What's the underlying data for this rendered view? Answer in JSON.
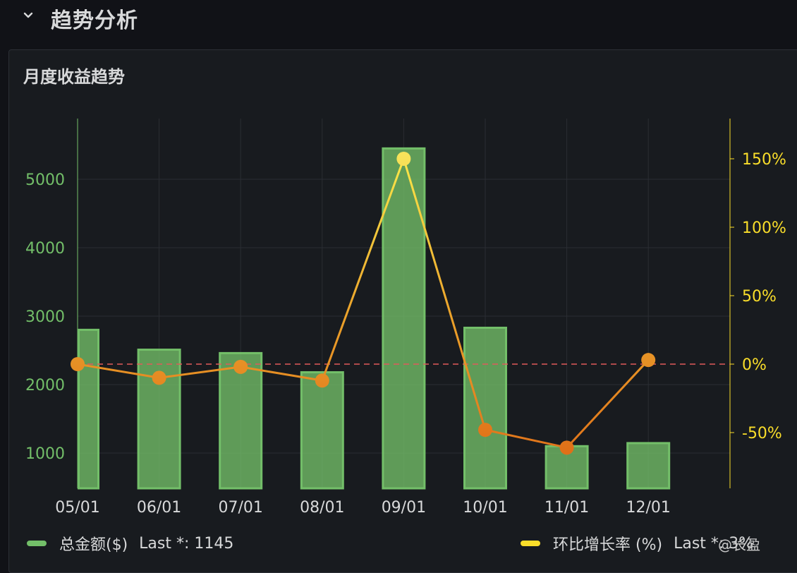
{
  "row": {
    "title": "趋势分析"
  },
  "panel": {
    "title": "月度收益趋势"
  },
  "legend": [
    {
      "name": "总金额($)",
      "last": "Last *: 1145",
      "color": "#73bf69"
    },
    {
      "name": "环比增长率 (%)",
      "last": "Last *: 3%",
      "color": "#fade2a"
    }
  ],
  "watermark": "@长盈",
  "colors": {
    "bar": "#73bf69",
    "line": "#e08a1e",
    "threshold": "#e05a5a",
    "left_axis": "#73bf69",
    "right_axis": "#fade2a"
  },
  "chart_data": {
    "type": "bar",
    "categories": [
      "05/01",
      "06/01",
      "07/01",
      "08/01",
      "09/01",
      "10/01",
      "11/01",
      "12/01"
    ],
    "series": [
      {
        "name": "总金额($)",
        "type": "bar",
        "axis": "left",
        "values": [
          2800,
          2510,
          2460,
          2180,
          5450,
          2830,
          1100,
          1145
        ]
      },
      {
        "name": "环比增长率 (%)",
        "type": "line",
        "axis": "right",
        "values": [
          0,
          -10,
          -2,
          -12,
          150,
          -48,
          -61,
          3
        ]
      }
    ],
    "y_left": {
      "ticks": [
        1000,
        2000,
        3000,
        4000,
        5000
      ],
      "tick_labels": [
        "1000",
        "2000",
        "3000",
        "4000",
        "5000"
      ]
    },
    "y_right": {
      "ticks": [
        -50,
        0,
        50,
        100,
        150
      ],
      "tick_labels": [
        "-50%",
        "0%",
        "50%",
        "100%",
        "150%"
      ]
    },
    "threshold": 0,
    "grid": true
  }
}
